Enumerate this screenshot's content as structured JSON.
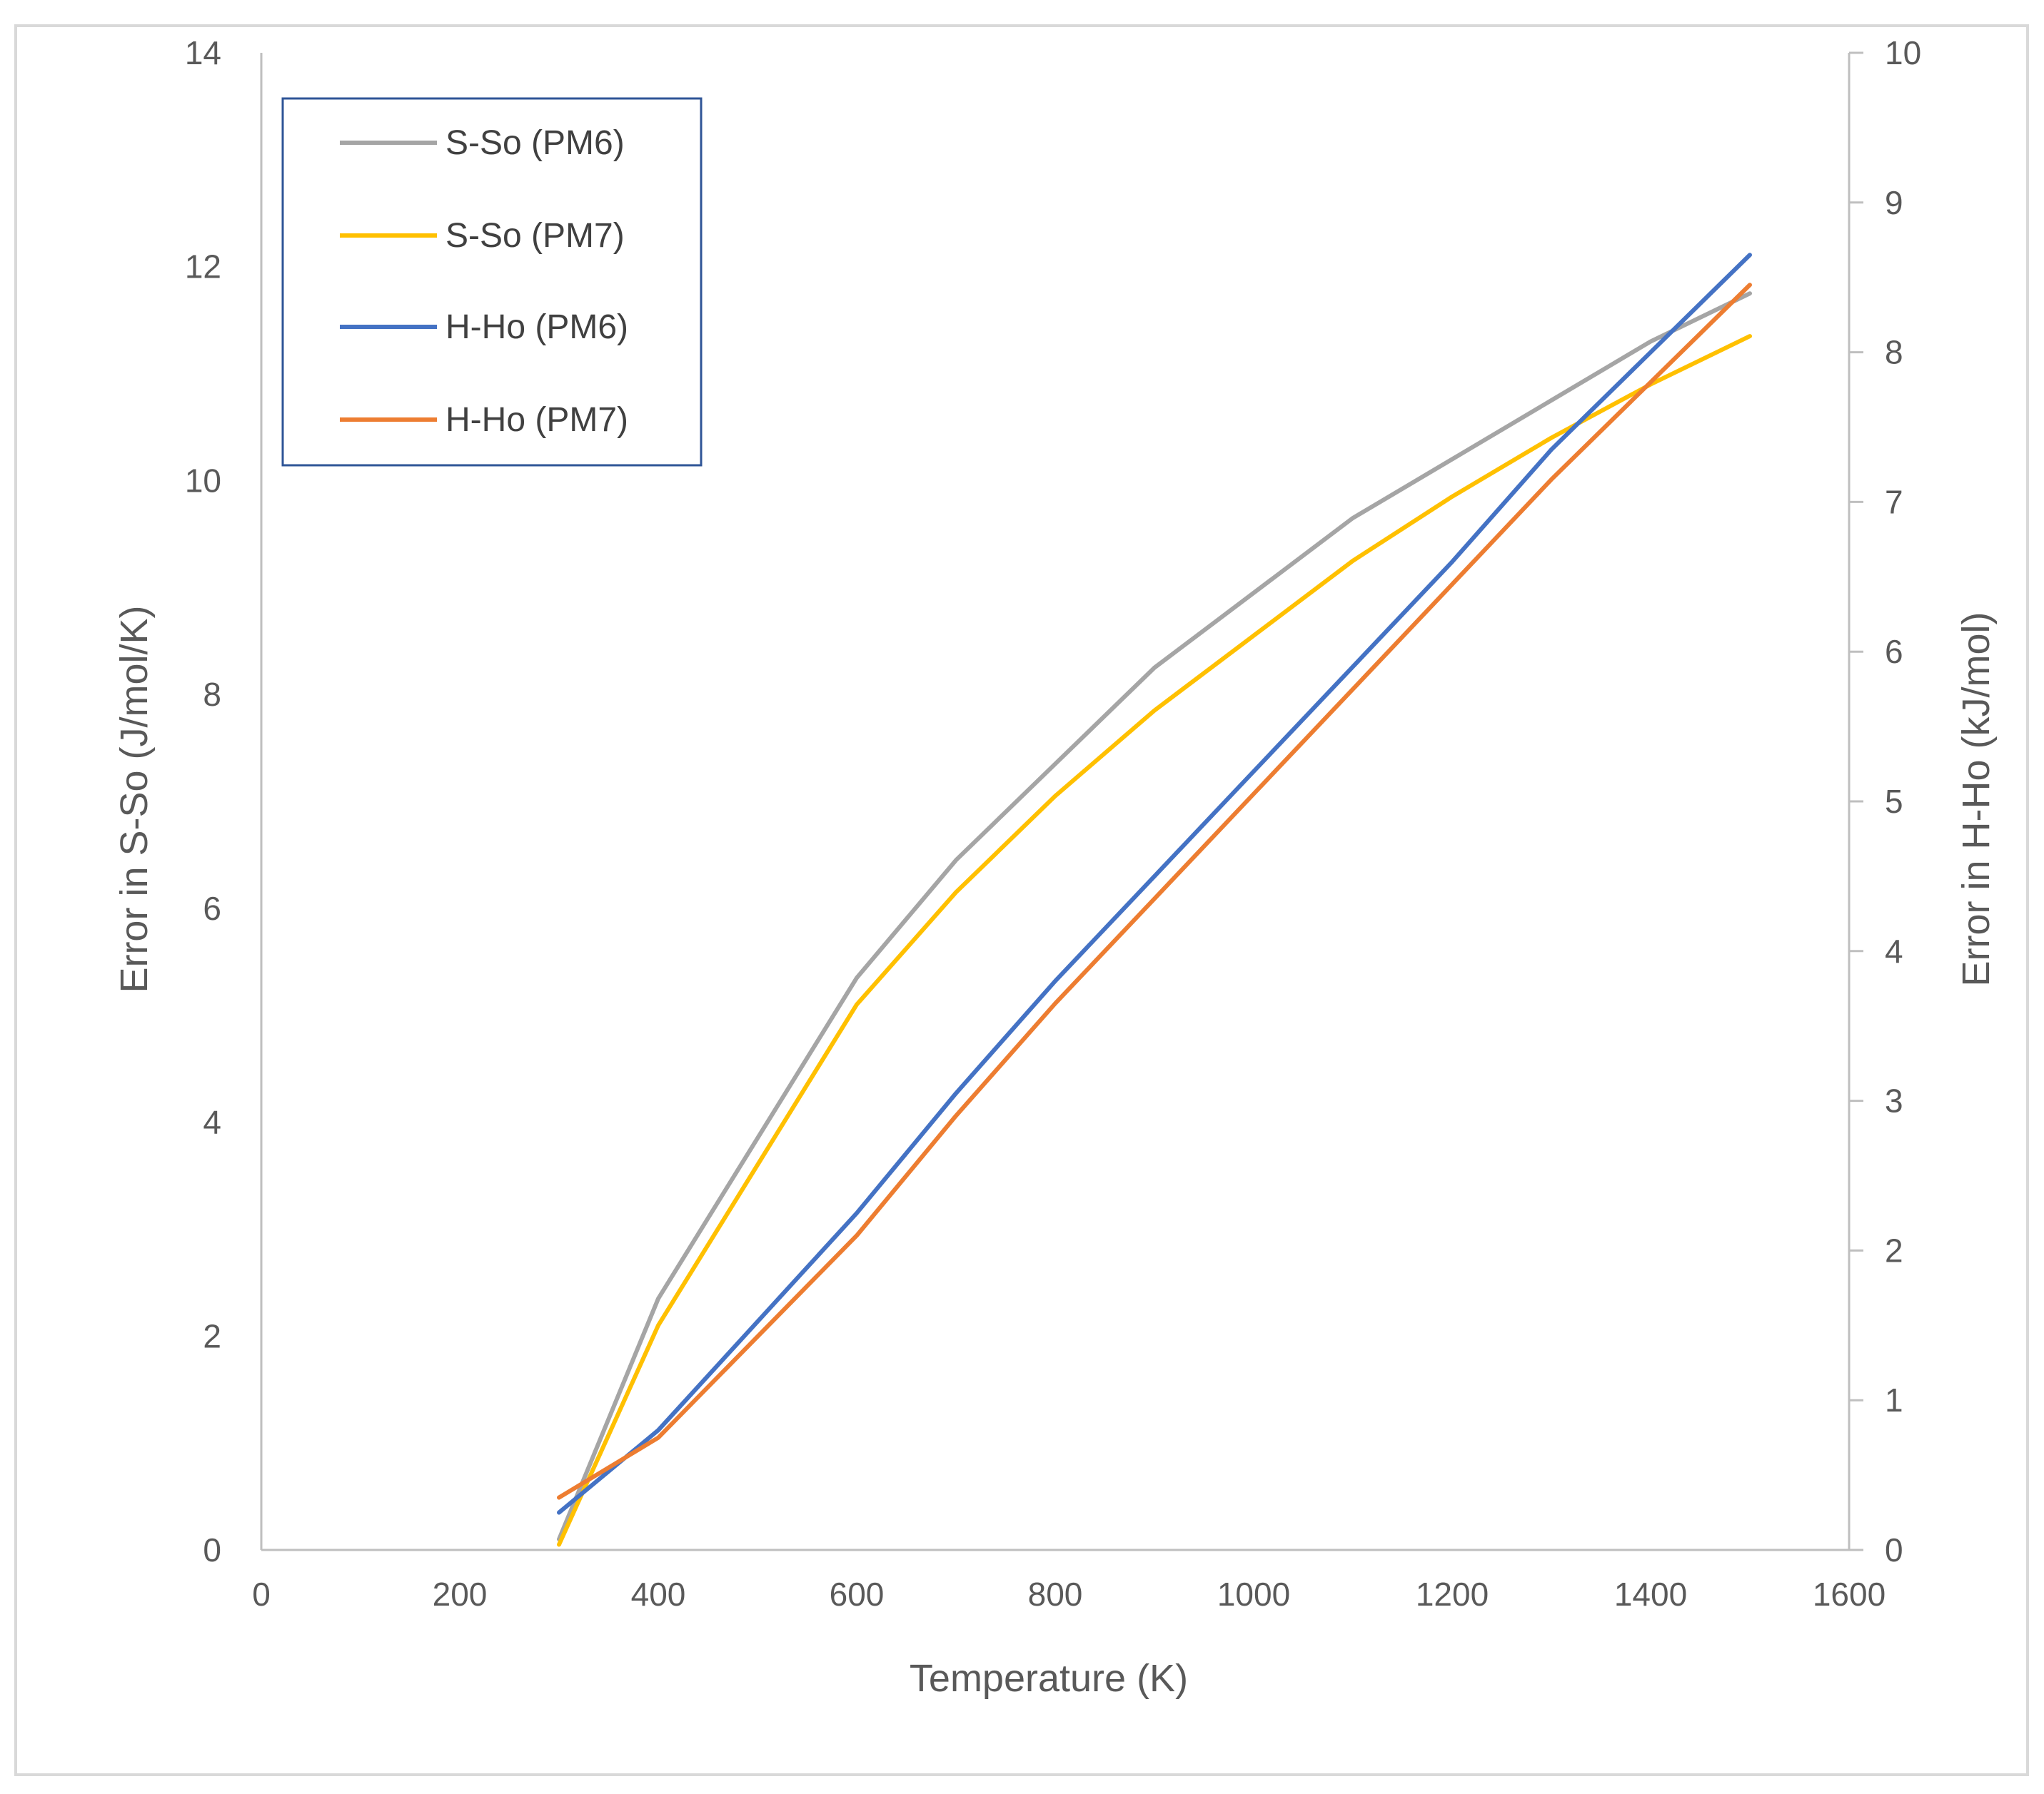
{
  "chart_data": {
    "type": "line",
    "x": [
      300,
      400,
      600,
      700,
      800,
      900,
      1000,
      1100,
      1200,
      1300,
      1400,
      1500
    ],
    "series": [
      {
        "name": "S-So (PM6)",
        "axis": "left",
        "color": "#A5A5A5",
        "values": [
          0.1,
          2.35,
          5.35,
          6.45,
          7.35,
          8.25,
          8.95,
          9.65,
          10.2,
          10.75,
          11.3,
          11.75
        ]
      },
      {
        "name": "S-So (PM7)",
        "axis": "left",
        "color": "#FFC000",
        "values": [
          0.05,
          2.1,
          5.1,
          6.15,
          7.05,
          7.85,
          8.55,
          9.25,
          9.85,
          10.4,
          10.9,
          11.35
        ]
      },
      {
        "name": "H-Ho (PM6)",
        "axis": "right",
        "color": "#4472C4",
        "values": [
          0.25,
          0.8,
          2.25,
          3.05,
          3.8,
          4.5,
          5.2,
          5.9,
          6.6,
          7.35,
          8.0,
          8.65
        ]
      },
      {
        "name": "H-Ho (PM7)",
        "axis": "right",
        "color": "#ED7D31",
        "values": [
          0.35,
          0.75,
          2.1,
          2.9,
          3.65,
          4.35,
          5.05,
          5.75,
          6.45,
          7.15,
          7.8,
          8.45
        ]
      }
    ],
    "xlabel": "Temperature (K)",
    "ylabel": "Error in S-So (J/mol/K)",
    "y2label": "Error in H-Ho (kJ/mol)",
    "xlim": [
      0,
      1600
    ],
    "ylim": [
      0,
      14
    ],
    "y2lim": [
      0,
      10
    ],
    "xticks": [
      "0",
      "200",
      "400",
      "600",
      "800",
      "1000",
      "1200",
      "1400",
      "1600"
    ],
    "yticks": [
      "0",
      "2",
      "4",
      "6",
      "8",
      "10",
      "12",
      "14"
    ],
    "y2ticks": [
      "0",
      "1",
      "2",
      "3",
      "4",
      "5",
      "6",
      "7",
      "8",
      "9",
      "10"
    ],
    "legend_position": "top-left",
    "grid": false,
    "axis_color": "#BFBFBF",
    "legend_border_color": "#2F5597",
    "frame_color": "#D9D9D9"
  }
}
